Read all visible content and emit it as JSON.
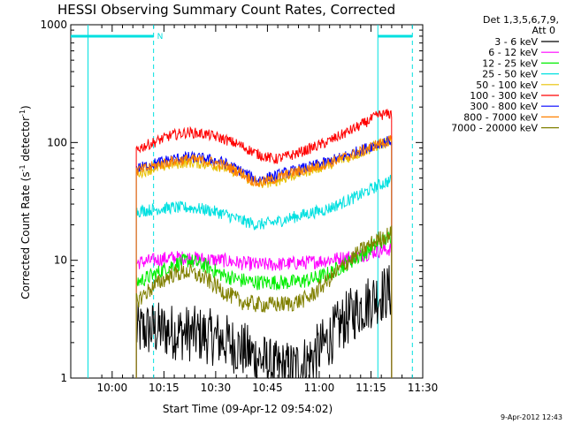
{
  "chart_data": {
    "type": "line",
    "title": "HESSI Observing Summary Count Rates, Corrected",
    "xlabel": "Start Time (09-Apr-12 09:54:02)",
    "ylabel_main": "Corrected Count Rate (s",
    "ylabel_sup1": "-1",
    "ylabel_mid": " detector",
    "ylabel_sup2": "-1",
    "ylabel_end": ")",
    "footer": "9-Apr-2012 12:43",
    "yscale": "log",
    "ylim": [
      1,
      1000
    ],
    "xlim_minutes": [
      -6,
      96
    ],
    "x_tick_labels": [
      "10:00",
      "10:15",
      "10:30",
      "10:45",
      "11:00",
      "11:15",
      "11:30"
    ],
    "x_tick_minutes": [
      6,
      21,
      36,
      51,
      66,
      81,
      96
    ],
    "y_tick_labels": [
      "1",
      "10",
      "100",
      "1000"
    ],
    "y_tick_values": [
      1,
      10,
      100,
      1000
    ],
    "legend_header": [
      "Det 1,3,5,6,7,9,",
      "Att 0"
    ],
    "data_start_minute": 13,
    "data_end_minute": 87,
    "annotations": {
      "night_bars_color": "#00e0e0",
      "saa_label": "N",
      "dashed_markers_minutes": [
        18,
        93
      ],
      "solid_markers_minutes": [
        -1,
        83
      ]
    },
    "series": [
      {
        "name": "3 - 6 keV",
        "color": "#000000",
        "x": [
          13,
          18,
          23,
          28,
          33,
          38,
          43,
          48,
          53,
          58,
          63,
          68,
          73,
          78,
          83,
          87
        ],
        "y": [
          2.5,
          2.6,
          2.5,
          2.4,
          2.3,
          2.1,
          1.8,
          1.5,
          1.2,
          1.2,
          1.4,
          2.0,
          3.0,
          4.0,
          5.0,
          5.5
        ]
      },
      {
        "name": "6 - 12 keV",
        "color": "#ff00ff",
        "x": [
          13,
          18,
          23,
          28,
          33,
          38,
          43,
          48,
          53,
          58,
          63,
          68,
          73,
          78,
          83,
          87
        ],
        "y": [
          9.5,
          10,
          10.5,
          10.5,
          10.2,
          10,
          9.5,
          9.2,
          9.2,
          9.4,
          9.6,
          10,
          10.5,
          11,
          12,
          12.5
        ]
      },
      {
        "name": "12 - 25 keV",
        "color": "#00ee00",
        "x": [
          13,
          18,
          23,
          28,
          33,
          38,
          43,
          48,
          53,
          58,
          63,
          68,
          73,
          78,
          83,
          87
        ],
        "y": [
          6.5,
          7.5,
          9,
          10,
          9,
          7.5,
          6.8,
          6.5,
          6.5,
          6.5,
          6.8,
          7.5,
          9,
          11,
          14,
          16
        ]
      },
      {
        "name": "25 - 50 keV",
        "color": "#00e0e0",
        "x": [
          13,
          18,
          23,
          28,
          33,
          38,
          43,
          48,
          53,
          58,
          63,
          68,
          73,
          78,
          83,
          87
        ],
        "y": [
          26,
          27,
          28,
          28,
          27,
          25,
          22,
          20,
          21,
          23,
          25,
          27,
          31,
          36,
          43,
          48
        ]
      },
      {
        "name": "50 - 100 keV",
        "color": "#e8c000",
        "x": [
          13,
          18,
          23,
          28,
          33,
          38,
          43,
          48,
          53,
          58,
          63,
          68,
          73,
          78,
          83,
          87
        ],
        "y": [
          55,
          60,
          65,
          68,
          66,
          62,
          55,
          44,
          47,
          52,
          58,
          64,
          72,
          82,
          95,
          102
        ]
      },
      {
        "name": "100 - 300 keV",
        "color": "#ff0000",
        "x": [
          13,
          18,
          23,
          28,
          33,
          38,
          43,
          48,
          53,
          58,
          63,
          68,
          73,
          78,
          83,
          87
        ],
        "y": [
          88,
          100,
          115,
          122,
          118,
          108,
          95,
          80,
          72,
          78,
          88,
          100,
          118,
          140,
          170,
          176
        ]
      },
      {
        "name": "300 - 800 keV",
        "color": "#0000ff",
        "x": [
          13,
          18,
          23,
          28,
          33,
          38,
          43,
          48,
          53,
          58,
          63,
          68,
          73,
          78,
          83,
          87
        ],
        "y": [
          60,
          66,
          72,
          75,
          73,
          68,
          58,
          48,
          52,
          57,
          62,
          68,
          76,
          86,
          98,
          104
        ]
      },
      {
        "name": "800 - 7000 keV",
        "color": "#ff8000",
        "x": [
          13,
          18,
          23,
          28,
          33,
          38,
          43,
          48,
          53,
          58,
          63,
          68,
          73,
          78,
          83,
          87
        ],
        "y": [
          57,
          63,
          69,
          72,
          70,
          65,
          56,
          45,
          49,
          55,
          60,
          66,
          74,
          84,
          97,
          104
        ]
      },
      {
        "name": "7000 - 20000 keV",
        "color": "#808000",
        "x": [
          13,
          18,
          23,
          28,
          33,
          38,
          43,
          48,
          53,
          58,
          63,
          68,
          73,
          78,
          83,
          87
        ],
        "y": [
          4.5,
          6,
          7.5,
          8,
          7,
          5.5,
          4.5,
          4.2,
          4.2,
          4.3,
          4.8,
          6.5,
          9,
          12,
          15,
          17
        ]
      }
    ]
  }
}
